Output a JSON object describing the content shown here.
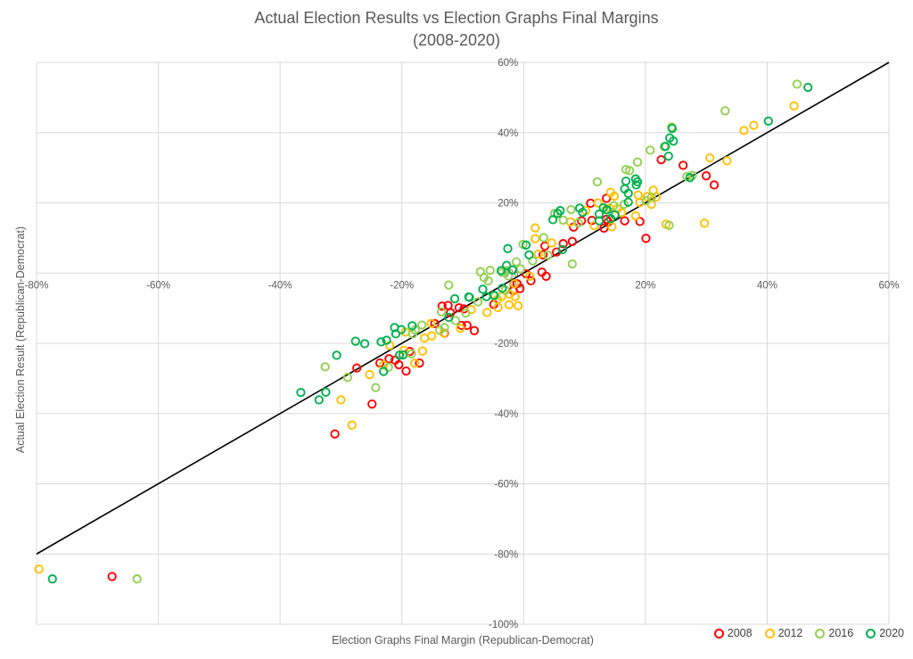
{
  "title": {
    "line1": "Actual Election Results vs Election Graphs Final Margins",
    "line2": "(2008-2020)"
  },
  "colors": {
    "background": "#ffffff",
    "gridline": "#d9d9d9",
    "axis_text": "#595959",
    "title_text": "#595959",
    "identity_line": "#000000",
    "series_2008": "#ff0000",
    "series_2012": "#ffc000",
    "series_2016": "#92d050",
    "series_2020": "#00b050"
  },
  "chart_data": {
    "type": "scatter",
    "title": "Actual Election Results vs Election Graphs Final Margins (2008-2020)",
    "xlabel": "Election Graphs Final Margin (Republican-Democrat)",
    "ylabel": "Actual Election Result (Republican-Democrat)",
    "xlim": [
      -80,
      60
    ],
    "ylim": [
      -100,
      60
    ],
    "x_ticks": [
      -80,
      -60,
      -40,
      -20,
      0,
      20,
      40,
      60
    ],
    "y_ticks": [
      60,
      40,
      20,
      0,
      -20,
      -40,
      -60,
      -80,
      -100
    ],
    "tick_format": "percent",
    "grid": true,
    "legend_position": "bottom-right",
    "identity_line": {
      "x1": -80,
      "y1": -80,
      "x2": 60,
      "y2": 60
    },
    "marker": {
      "shape": "open-circle",
      "radius": 4.2,
      "stroke_width": 1.9
    },
    "series": [
      {
        "name": "2008",
        "color": "#ff0000",
        "points": [
          [
            -67.6,
            -86.4
          ],
          [
            -31,
            -45.8
          ],
          [
            -24.9,
            -37.3
          ],
          [
            -27.4,
            -27
          ],
          [
            -23.6,
            -25.6
          ],
          [
            -22.1,
            -24.4
          ],
          [
            -21.1,
            -24.8
          ],
          [
            -20.5,
            -26.1
          ],
          [
            -19.3,
            -27.9
          ],
          [
            -18.7,
            -22.3
          ],
          [
            -17.1,
            -25.6
          ],
          [
            -14.6,
            -14.4
          ],
          [
            -13.4,
            -9.4
          ],
          [
            -13,
            -17.1
          ],
          [
            -12.4,
            -9.2
          ],
          [
            -12,
            -11.3
          ],
          [
            -10.6,
            -9.9
          ],
          [
            -10.2,
            -14.9
          ],
          [
            -9.8,
            -10.2
          ],
          [
            -9.3,
            -14.9
          ],
          [
            -8.1,
            -16.4
          ],
          [
            -4.9,
            -8.9
          ],
          [
            -1.7,
            -5
          ],
          [
            -1.1,
            -3
          ],
          [
            -0.6,
            -4.4
          ],
          [
            0.4,
            -0.2
          ],
          [
            1.2,
            -2.2
          ],
          [
            3,
            0.3
          ],
          [
            3.7,
            -0.9
          ],
          [
            3.2,
            5.2
          ],
          [
            3.5,
            7.7
          ],
          [
            5.4,
            6
          ],
          [
            6.5,
            8.4
          ],
          [
            8,
            9
          ],
          [
            8.2,
            13.1
          ],
          [
            9.5,
            14.9
          ],
          [
            11,
            19.9
          ],
          [
            11.2,
            15
          ],
          [
            13.2,
            12.8
          ],
          [
            13.6,
            15.3
          ],
          [
            13.9,
            14.6
          ],
          [
            13.6,
            21.3
          ],
          [
            16.6,
            14.9
          ],
          [
            19.1,
            14.7
          ],
          [
            20.1,
            9.9
          ],
          [
            22.6,
            32.3
          ],
          [
            26.2,
            30.7
          ],
          [
            30,
            27.7
          ],
          [
            31.3,
            25.1
          ]
        ]
      },
      {
        "name": "2012",
        "color": "#ffc000",
        "points": [
          [
            -79.6,
            -84.3
          ],
          [
            -30,
            -36.1
          ],
          [
            -28.2,
            -43.3
          ],
          [
            -25.3,
            -28.9
          ],
          [
            -23,
            -26.2
          ],
          [
            -22,
            -20.6
          ],
          [
            -19.7,
            -22
          ],
          [
            -19.4,
            -16.8
          ],
          [
            -17.9,
            -25.7
          ],
          [
            -16.6,
            -22.2
          ],
          [
            -16.3,
            -18.5
          ],
          [
            -15.2,
            -14.3
          ],
          [
            -15.1,
            -17.9
          ],
          [
            -13.1,
            -17.1
          ],
          [
            -10.4,
            -15.7
          ],
          [
            -8.6,
            -10.4
          ],
          [
            -6,
            -11.2
          ],
          [
            -4.3,
            -7.5
          ],
          [
            -4.2,
            -9.8
          ],
          [
            -3.6,
            -6.7
          ],
          [
            -2.4,
            -9
          ],
          [
            -2.3,
            -6
          ],
          [
            -1.5,
            -3
          ],
          [
            -1.4,
            -6.7
          ],
          [
            -0.9,
            -9.3
          ],
          [
            1,
            -0.9
          ],
          [
            1.9,
            9.8
          ],
          [
            1.9,
            12.9
          ],
          [
            2.4,
            5.4
          ],
          [
            4.6,
            8.6
          ],
          [
            7.7,
            14.6
          ],
          [
            10.2,
            17.8
          ],
          [
            11.6,
            13.5
          ],
          [
            12.2,
            20
          ],
          [
            14.1,
            18.5
          ],
          [
            14.3,
            23
          ],
          [
            14.5,
            13.2
          ],
          [
            14.9,
            21.9
          ],
          [
            15.4,
            18.3
          ],
          [
            16.1,
            17.2
          ],
          [
            18.4,
            16.3
          ],
          [
            18.8,
            22.2
          ],
          [
            19.1,
            20.1
          ],
          [
            20.3,
            21.8
          ],
          [
            21,
            19.6
          ],
          [
            21.3,
            23.6
          ],
          [
            21.8,
            21.7
          ],
          [
            23.4,
            13.9
          ],
          [
            29.7,
            14.2
          ],
          [
            30.6,
            32.8
          ],
          [
            33.4,
            32
          ],
          [
            36.2,
            40.6
          ],
          [
            37.8,
            42.1
          ],
          [
            44.4,
            47.6
          ]
        ]
      },
      {
        "name": "2016",
        "color": "#92d050",
        "points": [
          [
            -63.5,
            -87.1
          ],
          [
            -32.6,
            -26.7
          ],
          [
            -28.9,
            -29.7
          ],
          [
            -24.3,
            -32.6
          ],
          [
            -22.2,
            -26.8
          ],
          [
            -18.4,
            -23
          ],
          [
            -18.2,
            -17.3
          ],
          [
            -17.8,
            -16.2
          ],
          [
            -16.7,
            -14.8
          ],
          [
            -13.8,
            -16.3
          ],
          [
            -13.5,
            -11
          ],
          [
            -13,
            -15.5
          ],
          [
            -12.3,
            -3.4
          ],
          [
            -11.2,
            -13.5
          ],
          [
            -9.5,
            -11.4
          ],
          [
            -7.5,
            -8.2
          ],
          [
            -7.1,
            0.4
          ],
          [
            -6.5,
            -1.3
          ],
          [
            -5.8,
            -2.2
          ],
          [
            -5.5,
            0.8
          ],
          [
            -4.7,
            -6.5
          ],
          [
            -3.5,
            0.2
          ],
          [
            -3,
            -4.9
          ],
          [
            -2.8,
            0.7
          ],
          [
            -2.5,
            -0.8
          ],
          [
            -1.2,
            3.2
          ],
          [
            -0.5,
            1.2
          ],
          [
            -0.1,
            8.2
          ],
          [
            1.5,
            3.5
          ],
          [
            3.3,
            10.1
          ],
          [
            4,
            5.1
          ],
          [
            5.1,
            17
          ],
          [
            6.5,
            15.1
          ],
          [
            7.8,
            18.1
          ],
          [
            8,
            2.6
          ],
          [
            9,
            14.3
          ],
          [
            12.1,
            26
          ],
          [
            13.5,
            18.1
          ],
          [
            14.8,
            19.2
          ],
          [
            16.5,
            19.6
          ],
          [
            16.8,
            29.5
          ],
          [
            17.4,
            29.2
          ],
          [
            18.7,
            31.6
          ],
          [
            20.1,
            20.6
          ],
          [
            20.8,
            35
          ],
          [
            21,
            21.6
          ],
          [
            23.1,
            36
          ],
          [
            23.9,
            13.6
          ],
          [
            24.3,
            41.6
          ],
          [
            26.8,
            27.5
          ],
          [
            27.7,
            27.8
          ],
          [
            33.1,
            46.2
          ],
          [
            44.9,
            53.8
          ]
        ]
      },
      {
        "name": "2020",
        "color": "#00b050",
        "points": [
          [
            -77.4,
            -87.1
          ],
          [
            -36.6,
            -34
          ],
          [
            -33.6,
            -36.1
          ],
          [
            -32.5,
            -33.9
          ],
          [
            -30.7,
            -23.4
          ],
          [
            -27.6,
            -19.4
          ],
          [
            -26.1,
            -20.1
          ],
          [
            -23.4,
            -19.6
          ],
          [
            -23,
            -28
          ],
          [
            -22.5,
            -19.1
          ],
          [
            -21.2,
            -15.5
          ],
          [
            -21,
            -17.3
          ],
          [
            -20.4,
            -23.4
          ],
          [
            -20.1,
            -16.1
          ],
          [
            -19.8,
            -23.3
          ],
          [
            -18.3,
            -15
          ],
          [
            -12.3,
            -12.6
          ],
          [
            -11.3,
            -7.3
          ],
          [
            -9,
            -6.8
          ],
          [
            -8.9,
            -6.9
          ],
          [
            -6.7,
            -4.6
          ],
          [
            -6.1,
            -6.7
          ],
          [
            -4.9,
            -6.3
          ],
          [
            -3.7,
            0.7
          ],
          [
            -3.5,
            -4.3
          ],
          [
            -2.8,
            2.2
          ],
          [
            -2.6,
            7
          ],
          [
            -1.8,
            0.9
          ],
          [
            0.4,
            8
          ],
          [
            0.9,
            5.2
          ],
          [
            4.8,
            15.2
          ],
          [
            5.6,
            17
          ],
          [
            6,
            17.8
          ],
          [
            6.4,
            6.7
          ],
          [
            9.2,
            18.5
          ],
          [
            9.7,
            17.3
          ],
          [
            12.4,
            16.8
          ],
          [
            12.4,
            14.9
          ],
          [
            13.1,
            18.6
          ],
          [
            13.7,
            18
          ],
          [
            14.3,
            15.5
          ],
          [
            15,
            16.6
          ],
          [
            16.6,
            24
          ],
          [
            16.8,
            26.2
          ],
          [
            17.2,
            22.7
          ],
          [
            17.2,
            20.2
          ],
          [
            18.4,
            26.8
          ],
          [
            18.5,
            25.1
          ],
          [
            18.7,
            26
          ],
          [
            23.3,
            36.1
          ],
          [
            23.8,
            33.3
          ],
          [
            24,
            38.5
          ],
          [
            24.4,
            41.2
          ],
          [
            24.6,
            37.6
          ],
          [
            27.3,
            27.2
          ],
          [
            40.2,
            43.3
          ],
          [
            46.7,
            52.9
          ]
        ]
      }
    ]
  },
  "legend": {
    "items": [
      {
        "label": "2008",
        "color": "#ff0000"
      },
      {
        "label": "2012",
        "color": "#ffc000"
      },
      {
        "label": "2016",
        "color": "#92d050"
      },
      {
        "label": "2020",
        "color": "#00b050"
      }
    ]
  }
}
